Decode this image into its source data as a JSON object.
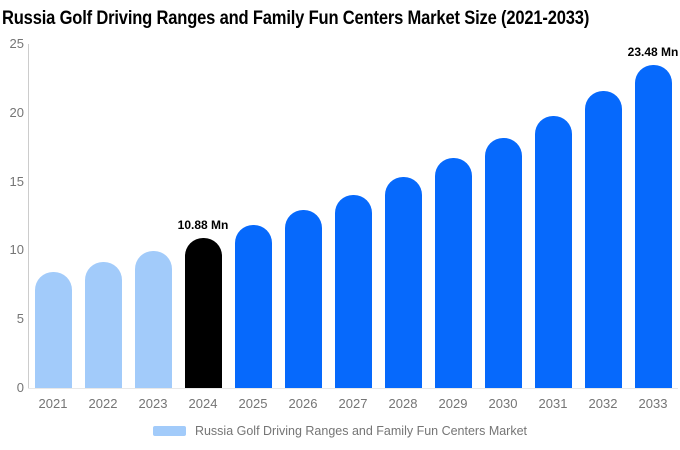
{
  "title": "Russia Golf Driving Ranges and Family Fun Centers Market Size (2021-2033)",
  "legend": {
    "label": "Russia Golf Driving Ranges and Family Fun Centers Market",
    "swatch_color": "#A2CBFA"
  },
  "palette": {
    "historical": "#A2CBFA",
    "base_year": "#000000",
    "forecast": "#0669FC",
    "axis_text": "#757575",
    "axis_line": "#CCCCCC"
  },
  "chart_data": {
    "type": "bar",
    "title": "Russia Golf Driving Ranges and Family Fun Centers Market Size (2021-2033)",
    "categories": [
      "2021",
      "2022",
      "2023",
      "2024",
      "2025",
      "2026",
      "2027",
      "2028",
      "2029",
      "2030",
      "2031",
      "2032",
      "2033"
    ],
    "values": [
      8.42,
      9.17,
      9.99,
      10.88,
      11.85,
      12.91,
      14.06,
      15.31,
      16.68,
      18.17,
      19.79,
      21.55,
      23.48
    ],
    "unit": "Mn",
    "xlabel": "",
    "ylabel": "",
    "ylim": [
      0,
      25
    ],
    "y_ticks": [
      0,
      5,
      10,
      15,
      20,
      25
    ],
    "grid": false,
    "legend_position": "bottom",
    "bar_colors": [
      "#A2CBFA",
      "#A2CBFA",
      "#A2CBFA",
      "#000000",
      "#0669FC",
      "#0669FC",
      "#0669FC",
      "#0669FC",
      "#0669FC",
      "#0669FC",
      "#0669FC",
      "#0669FC",
      "#0669FC"
    ],
    "data_labels": [
      {
        "index": 3,
        "text": "10.88 Mn"
      },
      {
        "index": 12,
        "text": "23.48 Mn"
      }
    ]
  }
}
